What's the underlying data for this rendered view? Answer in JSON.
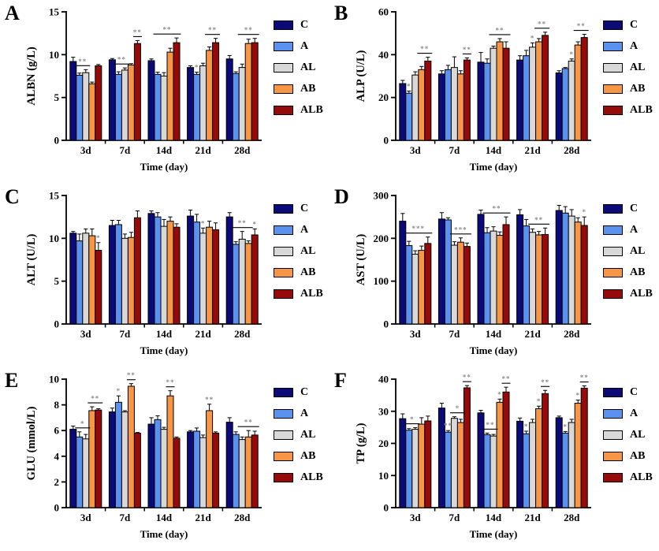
{
  "figure_title": "",
  "xlabel": "Time (day)",
  "categories": [
    "3d",
    "7d",
    "14d",
    "21d",
    "28d"
  ],
  "groups": [
    {
      "label": "C",
      "color": "#0A0A78"
    },
    {
      "label": "A",
      "color": "#5B92F0"
    },
    {
      "label": "AL",
      "color": "#D8D8D8"
    },
    {
      "label": "AB",
      "color": "#F79646"
    },
    {
      "label": "ALB",
      "color": "#960A0A"
    }
  ],
  "style": {
    "sig_color": "#8C8C8C",
    "axis_color": "#000000",
    "background": "#FFFFFF"
  },
  "chart_data": [
    {
      "letter": "A",
      "type": "bar",
      "title": "",
      "ylabel": "ALBN (g/L)",
      "ylim": [
        0,
        15
      ],
      "yticks": [
        0,
        5,
        10,
        15
      ],
      "categories": [
        "3d",
        "7d",
        "14d",
        "21d",
        "28d"
      ],
      "series": [
        {
          "name": "C",
          "values": [
            9.2,
            9.4,
            9.3,
            8.5,
            9.5
          ],
          "errors": [
            0.5,
            0.15,
            0.2,
            0.2,
            0.4
          ]
        },
        {
          "name": "A",
          "values": [
            7.6,
            7.7,
            7.7,
            7.7,
            7.8
          ],
          "errors": [
            0.25,
            0.3,
            0.25,
            0.25,
            0.2
          ]
        },
        {
          "name": "AL",
          "values": [
            7.9,
            8.2,
            7.5,
            8.7,
            8.5
          ],
          "errors": [
            0.35,
            0.25,
            0.4,
            0.3,
            0.4
          ]
        },
        {
          "name": "AB",
          "values": [
            6.6,
            8.8,
            10.3,
            10.5,
            11.3
          ],
          "errors": [
            0.2,
            0.15,
            0.45,
            0.4,
            0.5
          ]
        },
        {
          "name": "ALB",
          "values": [
            8.7,
            11.3,
            11.4,
            11.4,
            11.4
          ],
          "errors": [
            0.15,
            0.35,
            0.55,
            0.5,
            0.5
          ]
        }
      ],
      "annotations": [
        {
          "cat": "3d",
          "from": "A",
          "to": "AL",
          "label": "**",
          "line": true
        },
        {
          "cat": "7d",
          "from": "A",
          "to": "AL",
          "label": "**",
          "line": true
        },
        {
          "cat": "7d",
          "from": "ALB",
          "to": "ALB",
          "label": "**",
          "line": true
        },
        {
          "cat": "14d",
          "from": "A",
          "to": "ALB",
          "label": "**",
          "line": true
        },
        {
          "cat": "21d",
          "from": "A",
          "to": "A",
          "label": "*",
          "line": false
        },
        {
          "cat": "21d",
          "from": "AB",
          "to": "ALB",
          "label": "**",
          "line": true
        },
        {
          "cat": "28d",
          "from": "AL",
          "to": "ALB",
          "label": "**",
          "line": true
        }
      ]
    },
    {
      "letter": "B",
      "type": "bar",
      "title": "",
      "ylabel": "ALP (U/L)",
      "ylim": [
        0,
        60
      ],
      "yticks": [
        0,
        20,
        40,
        60
      ],
      "categories": [
        "3d",
        "7d",
        "14d",
        "21d",
        "28d"
      ],
      "series": [
        {
          "name": "C",
          "values": [
            26.5,
            31,
            36.5,
            37.5,
            31.5
          ],
          "errors": [
            1.5,
            1.5,
            4.5,
            2,
            1
          ]
        },
        {
          "name": "A",
          "values": [
            22,
            33,
            36,
            39.5,
            33.5
          ],
          "errors": [
            1,
            2,
            2,
            2.5,
            0.5
          ]
        },
        {
          "name": "AL",
          "values": [
            30.5,
            34,
            43,
            43.5,
            37
          ],
          "errors": [
            1.5,
            5,
            1,
            2,
            1
          ]
        },
        {
          "name": "AB",
          "values": [
            33,
            31,
            46,
            46,
            44.5
          ],
          "errors": [
            1.5,
            1.5,
            1.5,
            1.5,
            1.5
          ]
        },
        {
          "name": "ALB",
          "values": [
            37,
            37.5,
            43,
            49,
            48
          ],
          "errors": [
            1.8,
            1,
            3,
            1.5,
            1.5
          ]
        }
      ],
      "annotations": [
        {
          "cat": "3d",
          "from": "A",
          "to": "A",
          "label": "*",
          "line": false
        },
        {
          "cat": "3d",
          "from": "AB",
          "to": "ALB",
          "label": "**",
          "line": true
        },
        {
          "cat": "7d",
          "from": "ALB",
          "to": "ALB",
          "label": "**",
          "line": true
        },
        {
          "cat": "14d",
          "from": "AL",
          "to": "ALB",
          "label": "**",
          "line": true
        },
        {
          "cat": "21d",
          "from": "AL",
          "to": "AL",
          "label": "*",
          "line": false
        },
        {
          "cat": "21d",
          "from": "AB",
          "to": "ALB",
          "label": "**",
          "line": true
        },
        {
          "cat": "28d",
          "from": "AL",
          "to": "AL",
          "label": "*",
          "line": false
        },
        {
          "cat": "28d",
          "from": "AB",
          "to": "ALB",
          "label": "**",
          "line": true
        }
      ]
    },
    {
      "letter": "C",
      "type": "bar",
      "title": "",
      "ylabel": "ALT (U/L)",
      "ylim": [
        0,
        15
      ],
      "yticks": [
        0,
        5,
        10,
        15
      ],
      "categories": [
        "3d",
        "7d",
        "14d",
        "21d",
        "28d"
      ],
      "series": [
        {
          "name": "C",
          "values": [
            10.6,
            11.5,
            12.9,
            12.6,
            12.5
          ],
          "errors": [
            0.2,
            0.6,
            0.3,
            0.7,
            0.5
          ]
        },
        {
          "name": "A",
          "values": [
            9.7,
            11.6,
            12.5,
            11.9,
            9.3
          ],
          "errors": [
            0.8,
            0.5,
            0.5,
            0.9,
            0.3
          ]
        },
        {
          "name": "AL",
          "values": [
            10.6,
            10.0,
            11.4,
            10.6,
            9.9
          ],
          "errors": [
            0.5,
            0.5,
            0.8,
            0.6,
            0.9
          ]
        },
        {
          "name": "AB",
          "values": [
            10.3,
            10.1,
            12.0,
            11.3,
            9.4
          ],
          "errors": [
            0.8,
            0.6,
            0.5,
            0.7,
            0.3
          ]
        },
        {
          "name": "ALB",
          "values": [
            8.6,
            12.4,
            11.3,
            11.0,
            10.4
          ],
          "errors": [
            0.9,
            0.8,
            0.4,
            0.8,
            0.7
          ]
        }
      ],
      "annotations": [
        {
          "cat": "3d",
          "from": "ALB",
          "to": "ALB",
          "label": "*",
          "line": false
        },
        {
          "cat": "21d",
          "from": "AL",
          "to": "AL",
          "label": "*",
          "line": false
        },
        {
          "cat": "28d",
          "from": "A",
          "to": "AB",
          "label": "**",
          "line": true
        },
        {
          "cat": "28d",
          "from": "ALB",
          "to": "ALB",
          "label": "*",
          "line": false
        }
      ]
    },
    {
      "letter": "D",
      "type": "bar",
      "title": "",
      "ylabel": "AST (U/L)",
      "ylim": [
        0,
        300
      ],
      "yticks": [
        0,
        100,
        200,
        300
      ],
      "categories": [
        "3d",
        "7d",
        "14d",
        "21d",
        "28d"
      ],
      "series": [
        {
          "name": "C",
          "values": [
            240,
            245,
            256,
            255,
            265
          ],
          "errors": [
            18,
            15,
            10,
            12,
            12
          ]
        },
        {
          "name": "A",
          "values": [
            183,
            243,
            213,
            229,
            259
          ],
          "errors": [
            10,
            5,
            12,
            15,
            15
          ]
        },
        {
          "name": "AL",
          "values": [
            163,
            184,
            217,
            214,
            252
          ],
          "errors": [
            8,
            8,
            10,
            8,
            15
          ]
        },
        {
          "name": "AB",
          "values": [
            172,
            191,
            207,
            208,
            238
          ],
          "errors": [
            10,
            10,
            8,
            8,
            10
          ]
        },
        {
          "name": "ALB",
          "values": [
            188,
            181,
            232,
            209,
            230
          ],
          "errors": [
            15,
            8,
            18,
            15,
            20
          ]
        }
      ],
      "annotations": [
        {
          "cat": "3d",
          "from": "A",
          "to": "ALB",
          "label": "***",
          "line": true
        },
        {
          "cat": "7d",
          "from": "AL",
          "to": "ALB",
          "label": "***",
          "line": true
        },
        {
          "cat": "14d",
          "from": "A",
          "to": "ALB",
          "label": "**",
          "line": true
        },
        {
          "cat": "21d",
          "from": "AL",
          "to": "ALB",
          "label": "**",
          "line": true
        },
        {
          "cat": "28d",
          "from": "ALB",
          "to": "ALB",
          "label": "*",
          "line": false
        }
      ]
    },
    {
      "letter": "E",
      "type": "bar",
      "title": "",
      "ylabel": "GLU (mmol/L)",
      "ylim": [
        0,
        10
      ],
      "yticks": [
        0,
        2,
        4,
        6,
        8,
        10
      ],
      "categories": [
        "3d",
        "7d",
        "14d",
        "21d",
        "28d"
      ],
      "series": [
        {
          "name": "C",
          "values": [
            6.1,
            7.45,
            6.5,
            5.9,
            6.65
          ],
          "errors": [
            0.25,
            0.3,
            0.5,
            0.1,
            0.35
          ]
        },
        {
          "name": "A",
          "values": [
            5.5,
            8.2,
            6.85,
            5.95,
            5.7
          ],
          "errors": [
            0.4,
            0.5,
            0.3,
            0.25,
            0.2
          ]
        },
        {
          "name": "AL",
          "values": [
            5.35,
            7.45,
            6.1,
            5.45,
            5.3
          ],
          "errors": [
            0.35,
            0.1,
            0.15,
            0.2,
            0.2
          ]
        },
        {
          "name": "AB",
          "values": [
            7.55,
            9.45,
            8.7,
            7.55,
            5.5
          ],
          "errors": [
            0.3,
            0.2,
            0.4,
            0.5,
            0.5
          ]
        },
        {
          "name": "ALB",
          "values": [
            7.6,
            5.8,
            5.4,
            5.8,
            5.65
          ],
          "errors": [
            0.1,
            0.05,
            0.1,
            0.1,
            0.3
          ]
        }
      ],
      "annotations": [
        {
          "cat": "3d",
          "from": "A",
          "to": "AL",
          "label": "*",
          "line": true
        },
        {
          "cat": "3d",
          "from": "AB",
          "to": "ALB",
          "label": "**",
          "line": true
        },
        {
          "cat": "7d",
          "from": "A",
          "to": "A",
          "label": "*",
          "line": false
        },
        {
          "cat": "7d",
          "from": "AB",
          "to": "AB",
          "label": "**",
          "line": true
        },
        {
          "cat": "14d",
          "from": "AB",
          "to": "AB",
          "label": "**",
          "line": true
        },
        {
          "cat": "21d",
          "from": "AB",
          "to": "AB",
          "label": "**",
          "line": false
        },
        {
          "cat": "28d",
          "from": "AL",
          "to": "ALB",
          "label": "**",
          "line": true
        }
      ]
    },
    {
      "letter": "F",
      "type": "bar",
      "title": "",
      "ylabel": "TP (g/L)",
      "ylim": [
        0,
        40
      ],
      "yticks": [
        0,
        10,
        20,
        30,
        40
      ],
      "categories": [
        "3d",
        "7d",
        "14d",
        "21d",
        "28d"
      ],
      "series": [
        {
          "name": "C",
          "values": [
            27.7,
            31.0,
            29.5,
            26.9,
            28.0
          ],
          "errors": [
            1.5,
            1.5,
            0.8,
            1,
            0.5
          ]
        },
        {
          "name": "A",
          "values": [
            24.1,
            23.5,
            22.7,
            23.0,
            23.2
          ],
          "errors": [
            0.5,
            0.5,
            0.5,
            0.8,
            0.5
          ]
        },
        {
          "name": "AL",
          "values": [
            24.4,
            27.8,
            22.3,
            26.5,
            26.5
          ],
          "errors": [
            0.5,
            0.5,
            0.5,
            1,
            1
          ]
        },
        {
          "name": "AB",
          "values": [
            26.0,
            26.5,
            32.8,
            30.8,
            32.5
          ],
          "errors": [
            2,
            1,
            1,
            0.8,
            1
          ]
        },
        {
          "name": "ALB",
          "values": [
            27.0,
            37.3,
            36.0,
            35.5,
            37.2
          ],
          "errors": [
            1.5,
            0.7,
            1.5,
            1,
            0.7
          ]
        }
      ],
      "annotations": [
        {
          "cat": "3d",
          "from": "A",
          "to": "AL",
          "label": "*",
          "line": true
        },
        {
          "cat": "7d",
          "from": "A",
          "to": "A",
          "label": "**",
          "line": false
        },
        {
          "cat": "7d",
          "from": "AL",
          "to": "AB",
          "label": "*",
          "line": true
        },
        {
          "cat": "7d",
          "from": "ALB",
          "to": "ALB",
          "label": "**",
          "line": true
        },
        {
          "cat": "14d",
          "from": "A",
          "to": "AL",
          "label": "**",
          "line": true
        },
        {
          "cat": "14d",
          "from": "AB",
          "to": "AB",
          "label": "*",
          "line": false
        },
        {
          "cat": "14d",
          "from": "ALB",
          "to": "ALB",
          "label": "**",
          "line": true
        },
        {
          "cat": "21d",
          "from": "A",
          "to": "A",
          "label": "*",
          "line": false
        },
        {
          "cat": "21d",
          "from": "AB",
          "to": "AB",
          "label": "*",
          "line": false
        },
        {
          "cat": "21d",
          "from": "ALB",
          "to": "ALB",
          "label": "**",
          "line": true
        },
        {
          "cat": "28d",
          "from": "A",
          "to": "A",
          "label": "*",
          "line": false
        },
        {
          "cat": "28d",
          "from": "AB",
          "to": "AB",
          "label": "*",
          "line": false
        },
        {
          "cat": "28d",
          "from": "ALB",
          "to": "ALB",
          "label": "**",
          "line": true
        }
      ]
    }
  ]
}
